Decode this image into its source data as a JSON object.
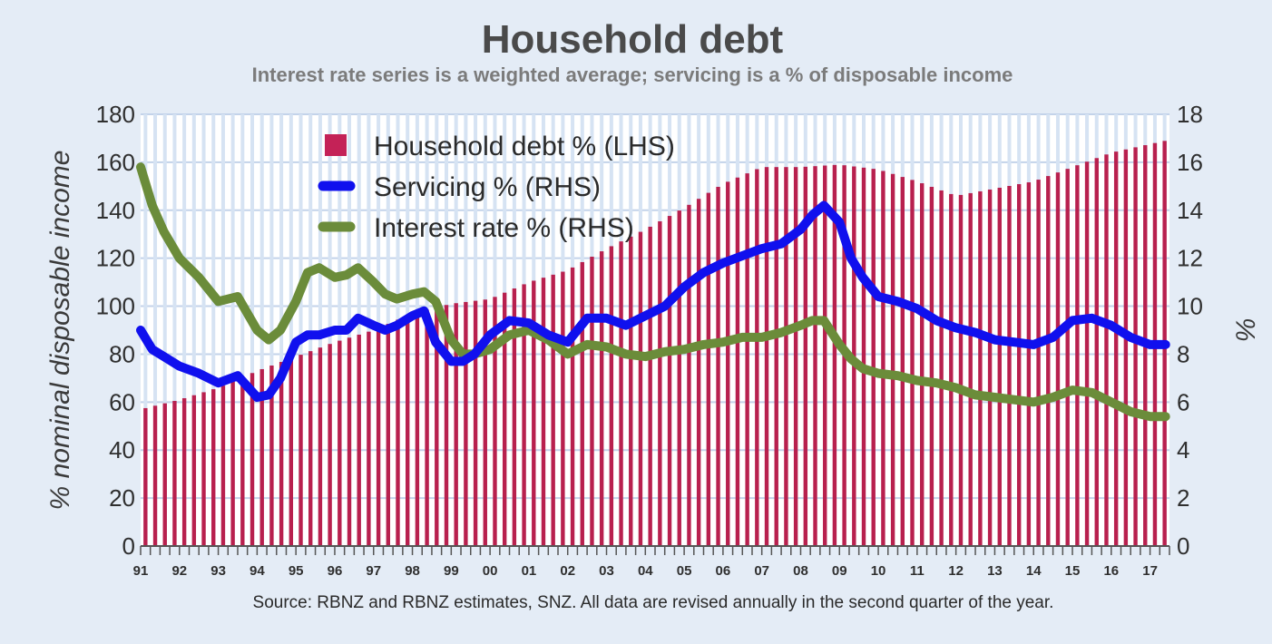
{
  "chart_data": {
    "type": "bar+line",
    "title": "Household debt",
    "subtitle": "Interest rate series is a weighted average; servicing is a % of disposable income",
    "ylabel_left": "% nominal disposable income",
    "ylabel_right": "%",
    "ylim_left": [
      0,
      180
    ],
    "ylim_right": [
      0,
      18
    ],
    "yticks_left": [
      "0",
      "20",
      "40",
      "60",
      "80",
      "100",
      "120",
      "140",
      "160",
      "180"
    ],
    "yticks_right": [
      "0",
      "2",
      "4",
      "6",
      "8",
      "10",
      "12",
      "14",
      "16",
      "18"
    ],
    "x_range": [
      1991.0,
      2017.5
    ],
    "x_tick_labels": [
      "91",
      "92",
      "93",
      "94",
      "95",
      "96",
      "97",
      "98",
      "99",
      "00",
      "01",
      "02",
      "03",
      "04",
      "05",
      "06",
      "07",
      "08",
      "09",
      "10",
      "11",
      "12",
      "13",
      "14",
      "15",
      "16",
      "17"
    ],
    "x_tick_years": [
      1991,
      1992,
      1993,
      1994,
      1995,
      1996,
      1997,
      1998,
      1999,
      2000,
      2001,
      2002,
      2003,
      2004,
      2005,
      2006,
      2007,
      2008,
      2009,
      2010,
      2011,
      2012,
      2013,
      2014,
      2015,
      2016,
      2017
    ],
    "grid": true,
    "legend_position": "top-left",
    "source": "Source: RBNZ and RBNZ estimates, SNZ. All data are revised annually in the second quarter of the year.",
    "colors": {
      "debt": "#b8204e",
      "servicing": "#1010ee",
      "interest": "#6b8c3a",
      "background": "#e4ecf6",
      "plot_background": "#ffffff",
      "gridline": "#c3d3ea"
    },
    "series": [
      {
        "name": "Household debt % (LHS)",
        "type": "bar",
        "axis": "left",
        "x": [
          1991,
          1992,
          1993,
          1994,
          1995,
          1996,
          1997,
          1998,
          1999,
          2000,
          2001,
          2002,
          2003,
          2004,
          2005,
          2006,
          2007,
          2008,
          2009,
          2010,
          2011,
          2012,
          2013,
          2014,
          2015,
          2016,
          2017.4
        ],
        "values": [
          57,
          61,
          66,
          73,
          79,
          85,
          90,
          97,
          101,
          103,
          110,
          115,
          124,
          132,
          141,
          151,
          158,
          158,
          159,
          157,
          152,
          146,
          149,
          152,
          158,
          164,
          169
        ]
      },
      {
        "name": "Servicing % (RHS)",
        "type": "line",
        "axis": "right",
        "x": [
          1991,
          1991.3,
          1991.6,
          1992,
          1992.5,
          1993,
          1993.5,
          1994,
          1994.3,
          1994.6,
          1995,
          1995.3,
          1995.6,
          1996,
          1996.3,
          1996.6,
          1997,
          1997.3,
          1997.6,
          1998,
          1998.3,
          1998.6,
          1999,
          1999.3,
          1999.6,
          2000,
          2000.5,
          2001,
          2001.5,
          2002,
          2002.5,
          2003,
          2003.5,
          2004,
          2004.5,
          2005,
          2005.5,
          2006,
          2006.5,
          2007,
          2007.5,
          2008,
          2008.3,
          2008.6,
          2009,
          2009.3,
          2009.6,
          2010,
          2010.5,
          2011,
          2011.5,
          2012,
          2012.5,
          2013,
          2013.5,
          2014,
          2014.5,
          2015,
          2015.5,
          2016,
          2016.5,
          2017,
          2017.4
        ],
        "values": [
          9.0,
          8.2,
          7.9,
          7.5,
          7.2,
          6.8,
          7.1,
          6.2,
          6.3,
          7.0,
          8.5,
          8.8,
          8.8,
          9.0,
          9.0,
          9.5,
          9.2,
          9.0,
          9.2,
          9.6,
          9.8,
          8.5,
          7.7,
          7.7,
          8.0,
          8.8,
          9.4,
          9.3,
          8.8,
          8.5,
          9.5,
          9.5,
          9.2,
          9.6,
          10.0,
          10.8,
          11.4,
          11.8,
          12.1,
          12.4,
          12.6,
          13.2,
          13.8,
          14.2,
          13.5,
          12.0,
          11.2,
          10.4,
          10.2,
          9.9,
          9.4,
          9.1,
          8.9,
          8.6,
          8.5,
          8.4,
          8.7,
          9.4,
          9.5,
          9.2,
          8.7,
          8.4,
          8.4
        ]
      },
      {
        "name": "Interest rate % (RHS)",
        "type": "line",
        "axis": "right",
        "x": [
          1991,
          1991.3,
          1991.6,
          1992,
          1992.5,
          1993,
          1993.5,
          1994,
          1994.3,
          1994.6,
          1995,
          1995.3,
          1995.6,
          1996,
          1996.3,
          1996.6,
          1997,
          1997.3,
          1997.6,
          1998,
          1998.3,
          1998.6,
          1999,
          1999.3,
          1999.6,
          2000,
          2000.5,
          2001,
          2001.5,
          2002,
          2002.5,
          2003,
          2003.5,
          2004,
          2004.5,
          2005,
          2005.5,
          2006,
          2006.5,
          2007,
          2007.5,
          2008,
          2008.3,
          2008.6,
          2009,
          2009.3,
          2009.6,
          2010,
          2010.5,
          2011,
          2011.5,
          2012,
          2012.5,
          2013,
          2013.5,
          2014,
          2014.5,
          2015,
          2015.5,
          2016,
          2016.5,
          2017,
          2017.4
        ],
        "values": [
          15.8,
          14.2,
          13.1,
          12.0,
          11.2,
          10.2,
          10.4,
          9.0,
          8.6,
          9.0,
          10.2,
          11.4,
          11.6,
          11.2,
          11.3,
          11.6,
          11.0,
          10.5,
          10.3,
          10.5,
          10.6,
          10.2,
          8.6,
          8.0,
          8.0,
          8.2,
          8.8,
          9.0,
          8.6,
          8.0,
          8.4,
          8.3,
          8.0,
          7.9,
          8.1,
          8.2,
          8.4,
          8.5,
          8.7,
          8.7,
          8.9,
          9.2,
          9.4,
          9.4,
          8.4,
          7.8,
          7.4,
          7.2,
          7.1,
          6.9,
          6.8,
          6.6,
          6.3,
          6.2,
          6.1,
          6.0,
          6.2,
          6.5,
          6.4,
          6.0,
          5.6,
          5.4,
          5.4
        ]
      }
    ]
  }
}
